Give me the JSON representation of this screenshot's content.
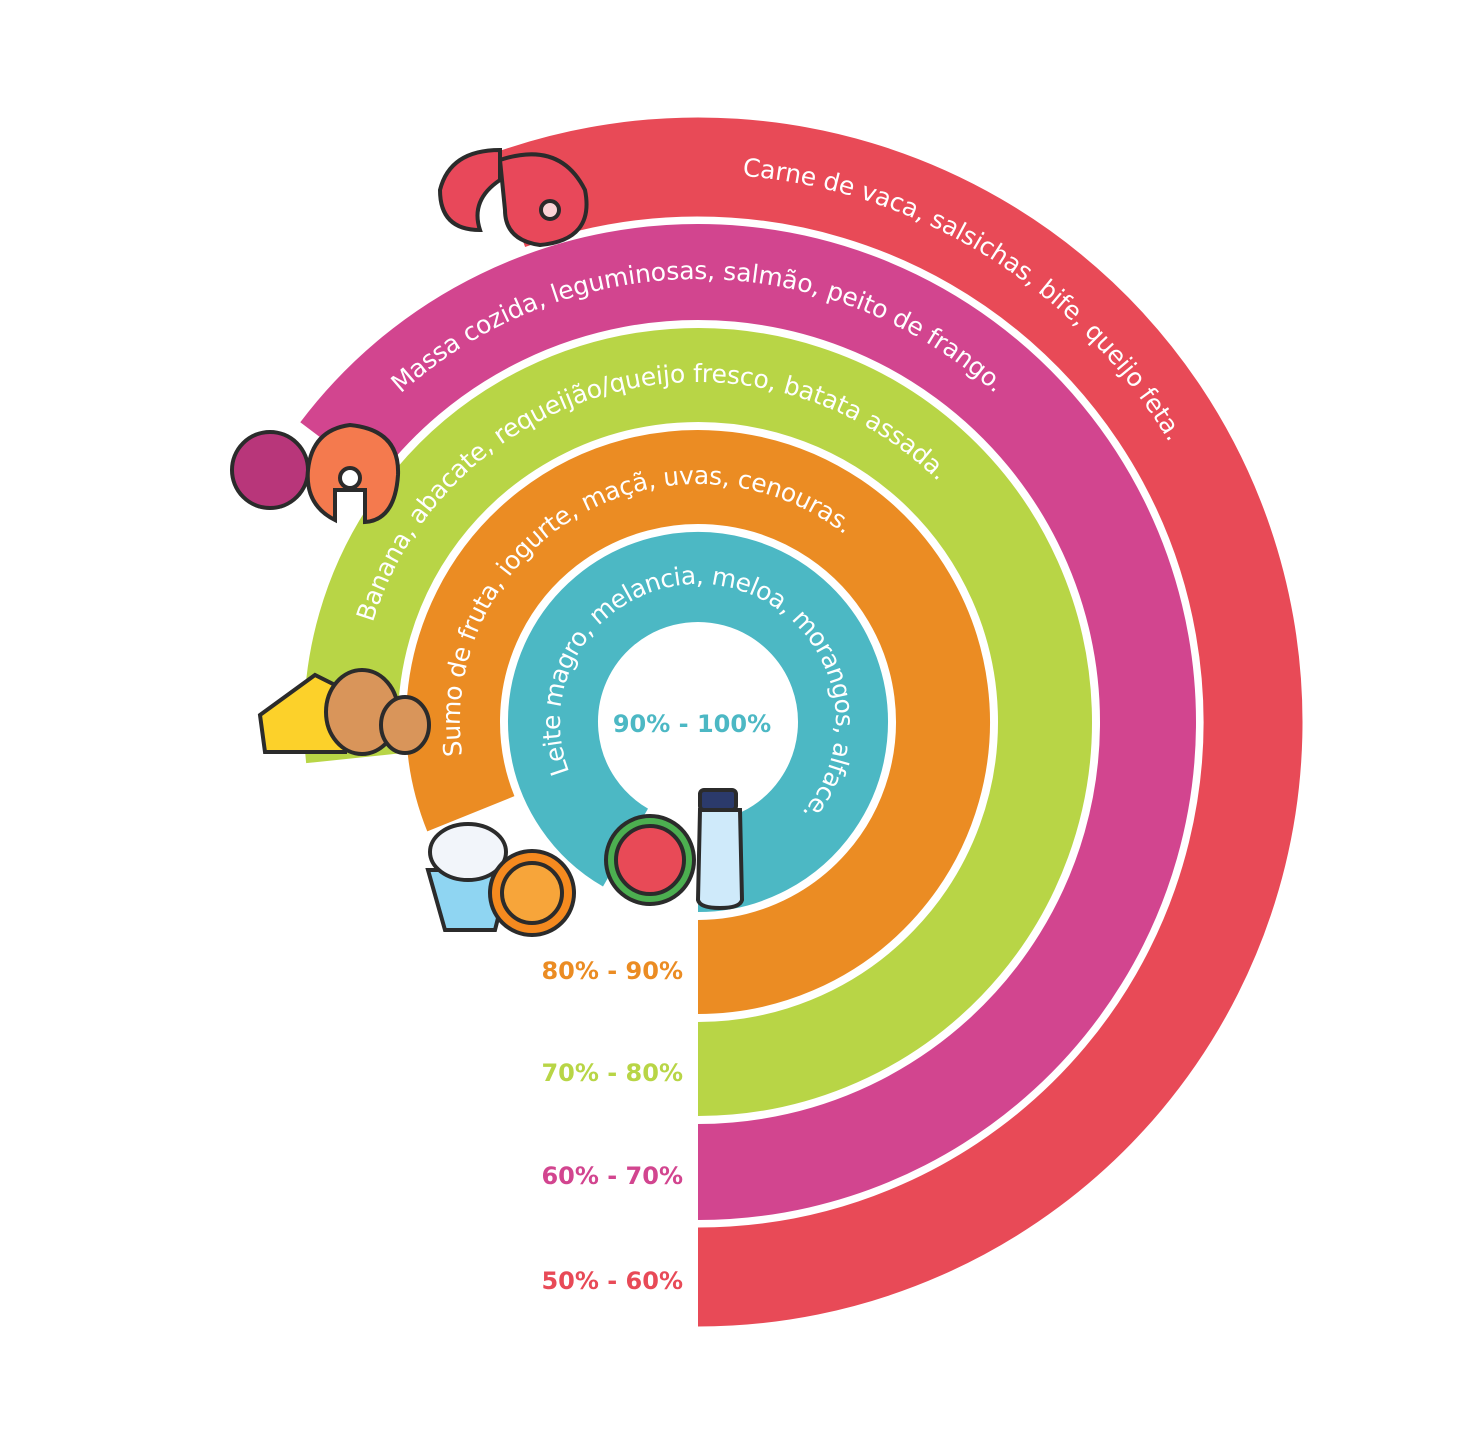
{
  "rings": [
    {
      "foods": "Leite magro, melancia, meloa, morangos, alface.",
      "range": "90%  - 100%",
      "color": "#4cb8c4"
    },
    {
      "foods": "Sumo de fruta, iogurte, maçã, uvas, cenouras.",
      "range": "80% - 90%",
      "color": "#eb8c23"
    },
    {
      "foods": "Banana, abacate, requeijão/queijo fresco, batata assada.",
      "range": "70% - 80%",
      "color": "#b8d546"
    },
    {
      "foods": "Massa cozida, leguminosas, salmão, peito de frango.",
      "range": "60% - 70%",
      "color": "#d2458f"
    },
    {
      "foods": "Carne de vaca, salsichas, bife, queijo feta.",
      "range": "50% - 60%",
      "color": "#e84a57"
    }
  ]
}
